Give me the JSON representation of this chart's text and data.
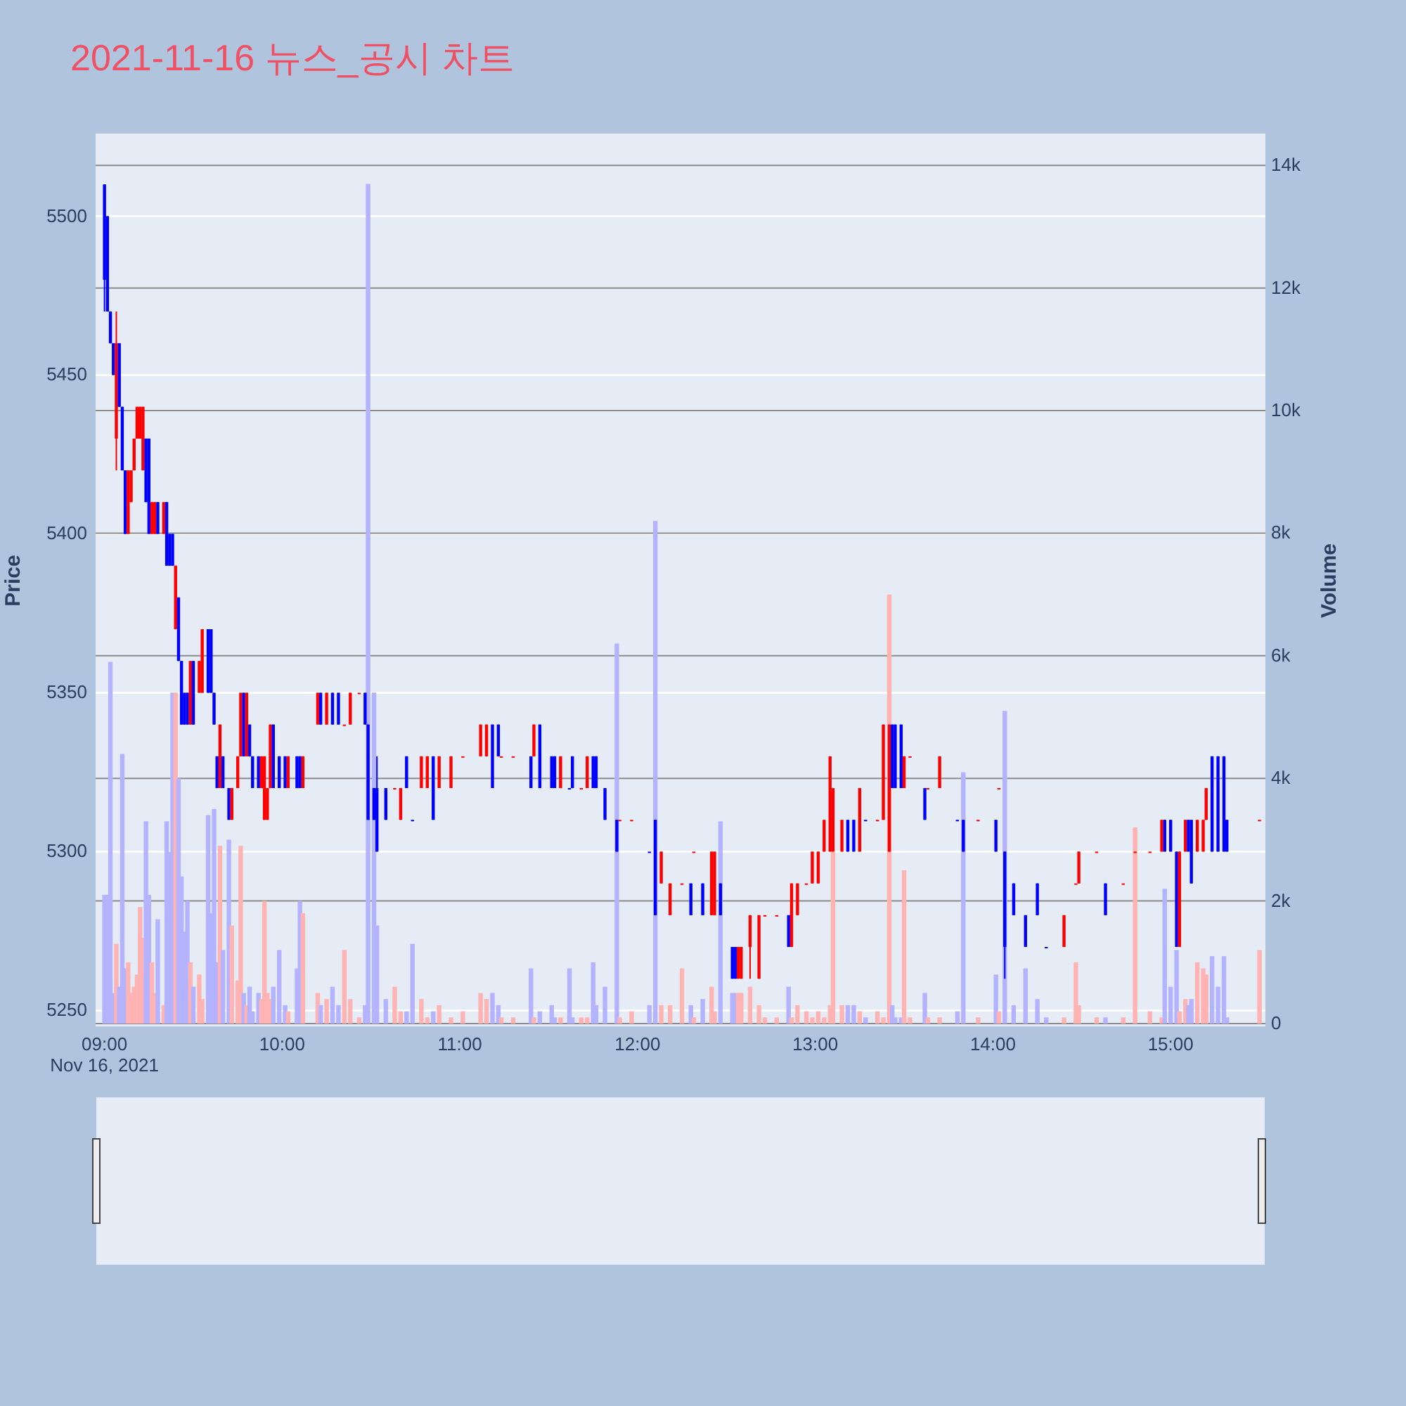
{
  "chart_data": {
    "type": "candlestick",
    "title": "2021-11-16 뉴스_공시 차트",
    "ylabel": "Price",
    "y2label": "Volume",
    "annotations": [
      "Nov 16, 2021"
    ],
    "colors": [
      "#0000ff",
      "#0000ff",
      "#0000ff",
      "#0000ff",
      "#ff0000",
      "#0000ff",
      "#0000ff",
      "#0000ff",
      "#ff0000",
      "#ff0000",
      "#ff0000",
      "#ff0000",
      "#ff0000",
      "#ff0000",
      "#0000ff",
      "#0000ff",
      "#ff0000",
      "#ff0000",
      "#0000ff",
      "#ff0000",
      "#0000ff",
      "#0000ff",
      "#0000ff",
      "#ff0000",
      "#0000ff",
      "#0000ff",
      "#0000ff",
      "#0000ff",
      "#ff0000",
      "#0000ff",
      "#ff0000",
      "#ff0000",
      "#0000ff",
      "#0000ff",
      "#0000ff",
      "#0000ff",
      "#ff0000",
      "#0000ff",
      "#0000ff",
      "#ff0000",
      "#ff0000",
      "#ff0000",
      "#0000ff",
      "#ff0000",
      "#0000ff",
      "#0000ff",
      "#0000ff",
      "#ff0000",
      "#ff0000",
      "#ff0000",
      "#ff0000",
      "#0000ff",
      "#0000ff",
      "#0000ff",
      "#ff0000",
      "#0000ff",
      "#0000ff",
      "#ff0000",
      "#ff0000",
      "#0000ff",
      "#ff0000",
      "#0000ff",
      "#0000ff",
      "#ff0000",
      "#ff0000",
      "#ff0000",
      "#0000ff",
      "#0000ff",
      "#0000ff",
      "#0000ff",
      "#0000ff",
      "#ff0000",
      "#ff0000",
      "#0000ff",
      "#0000ff",
      "#ff0000",
      "#ff0000",
      "#0000ff",
      "#ff0000",
      "#ff0000",
      "#ff0000",
      "#ff0000",
      "#ff0000",
      "#0000ff",
      "#0000ff",
      "#ff0000",
      "#ff0000",
      "#0000ff",
      "#ff0000",
      "#0000ff",
      "#0000ff",
      "#0000ff",
      "#ff0000",
      "#0000ff",
      "#0000ff",
      "#ff0000",
      "#ff0000",
      "#0000ff",
      "#0000ff",
      "#0000ff",
      "#0000ff",
      "#ff0000",
      "#ff0000",
      "#0000ff",
      "#0000ff",
      "#ff0000",
      "#ff0000",
      "#ff0000",
      "#0000ff",
      "#ff0000",
      "#0000ff",
      "#ff0000",
      "#ff0000",
      "#0000ff",
      "#0000ff",
      "#0000ff",
      "#ff0000",
      "#ff0000",
      "#ff0000",
      "#ff0000",
      "#ff0000",
      "#ff0000",
      "#0000ff",
      "#ff0000",
      "#ff0000",
      "#ff0000",
      "#ff0000",
      "#ff0000",
      "#ff0000",
      "#ff0000",
      "#ff0000",
      "#ff0000",
      "#0000ff",
      "#0000ff",
      "#ff0000",
      "#0000ff",
      "#ff0000",
      "#ff0000",
      "#ff0000",
      "#0000ff",
      "#0000ff",
      "#0000ff",
      "#ff0000",
      "#ff0000",
      "#0000ff",
      "#ff0000",
      "#ff0000",
      "#0000ff",
      "#0000ff",
      "#ff0000",
      "#0000ff",
      "#ff0000",
      "#0000ff",
      "#0000ff",
      "#0000ff",
      "#0000ff",
      "#0000ff",
      "#ff0000",
      "#ff0000",
      "#ff0000",
      "#ff0000",
      "#0000ff",
      "#ff0000",
      "#ff0000",
      "#ff0000",
      "#ff0000",
      "#0000ff",
      "#0000ff",
      "#0000ff",
      "#ff0000",
      "#ff0000",
      "#0000ff",
      "#0000ff",
      "#ff0000",
      "#ff0000",
      "#ff0000",
      "#0000ff",
      "#0000ff",
      "#0000ff",
      "#0000ff",
      "#ff0000"
    ],
    "grid": true,
    "legend": false,
    "x": [
      "2021-11-16T09:00",
      "2021-11-16T09:01",
      "2021-11-16T09:02",
      "2021-11-16T09:03",
      "2021-11-16T09:04",
      "2021-11-16T09:05",
      "2021-11-16T09:06",
      "2021-11-16T09:07",
      "2021-11-16T09:08",
      "2021-11-16T09:09",
      "2021-11-16T09:10",
      "2021-11-16T09:11",
      "2021-11-16T09:12",
      "2021-11-16T09:13",
      "2021-11-16T09:14",
      "2021-11-16T09:15",
      "2021-11-16T09:16",
      "2021-11-16T09:17",
      "2021-11-16T09:18",
      "2021-11-16T09:20",
      "2021-11-16T09:21",
      "2021-11-16T09:22",
      "2021-11-16T09:23",
      "2021-11-16T09:24",
      "2021-11-16T09:25",
      "2021-11-16T09:26",
      "2021-11-16T09:27",
      "2021-11-16T09:28",
      "2021-11-16T09:29",
      "2021-11-16T09:30",
      "2021-11-16T09:32",
      "2021-11-16T09:33",
      "2021-11-16T09:35",
      "2021-11-16T09:36",
      "2021-11-16T09:37",
      "2021-11-16T09:38",
      "2021-11-16T09:39",
      "2021-11-16T09:40",
      "2021-11-16T09:42",
      "2021-11-16T09:43",
      "2021-11-16T09:45",
      "2021-11-16T09:46",
      "2021-11-16T09:47",
      "2021-11-16T09:48",
      "2021-11-16T09:49",
      "2021-11-16T09:50",
      "2021-11-16T09:52",
      "2021-11-16T09:53",
      "2021-11-16T09:54",
      "2021-11-16T09:55",
      "2021-11-16T09:56",
      "2021-11-16T09:57",
      "2021-11-16T09:59",
      "2021-11-16T10:01",
      "2021-11-16T10:02",
      "2021-11-16T10:05",
      "2021-11-16T10:06",
      "2021-11-16T10:07",
      "2021-11-16T10:12",
      "2021-11-16T10:13",
      "2021-11-16T10:15",
      "2021-11-16T10:17",
      "2021-11-16T10:19",
      "2021-11-16T10:21",
      "2021-11-16T10:23",
      "2021-11-16T10:26",
      "2021-11-16T10:28",
      "2021-11-16T10:29",
      "2021-11-16T10:31",
      "2021-11-16T10:32",
      "2021-11-16T10:35",
      "2021-11-16T10:38",
      "2021-11-16T10:40",
      "2021-11-16T10:42",
      "2021-11-16T10:44",
      "2021-11-16T10:47",
      "2021-11-16T10:49",
      "2021-11-16T10:51",
      "2021-11-16T10:53",
      "2021-11-16T10:57",
      "2021-11-16T11:01",
      "2021-11-16T11:07",
      "2021-11-16T11:09",
      "2021-11-16T11:11",
      "2021-11-16T11:13",
      "2021-11-16T11:14",
      "2021-11-16T11:18",
      "2021-11-16T11:24",
      "2021-11-16T11:25",
      "2021-11-16T11:27",
      "2021-11-16T11:31",
      "2021-11-16T11:32",
      "2021-11-16T11:34",
      "2021-11-16T11:37",
      "2021-11-16T11:38",
      "2021-11-16T11:41",
      "2021-11-16T11:43",
      "2021-11-16T11:45",
      "2021-11-16T11:46",
      "2021-11-16T11:49",
      "2021-11-16T11:53",
      "2021-11-16T11:54",
      "2021-11-16T11:58",
      "2021-11-16T12:04",
      "2021-11-16T12:06",
      "2021-11-16T12:08",
      "2021-11-16T12:11",
      "2021-11-16T12:15",
      "2021-11-16T12:18",
      "2021-11-16T12:19",
      "2021-11-16T12:22",
      "2021-11-16T12:25",
      "2021-11-16T12:26",
      "2021-11-16T12:28",
      "2021-11-16T12:32",
      "2021-11-16T12:33",
      "2021-11-16T12:34",
      "2021-11-16T12:35",
      "2021-11-16T12:38",
      "2021-11-16T12:41",
      "2021-11-16T12:43",
      "2021-11-16T12:47",
      "2021-11-16T12:51",
      "2021-11-16T12:52",
      "2021-11-16T12:54",
      "2021-11-16T12:57",
      "2021-11-16T12:59",
      "2021-11-16T13:01",
      "2021-11-16T13:03",
      "2021-11-16T13:05",
      "2021-11-16T13:06",
      "2021-11-16T13:09",
      "2021-11-16T13:11",
      "2021-11-16T13:13",
      "2021-11-16T13:15",
      "2021-11-16T13:17",
      "2021-11-16T13:21",
      "2021-11-16T13:23",
      "2021-11-16T13:25",
      "2021-11-16T13:26",
      "2021-11-16T13:27",
      "2021-11-16T13:29",
      "2021-11-16T13:30",
      "2021-11-16T13:32",
      "2021-11-16T13:37",
      "2021-11-16T13:38",
      "2021-11-16T13:42",
      "2021-11-16T13:48",
      "2021-11-16T13:50",
      "2021-11-16T13:55",
      "2021-11-16T14:01",
      "2021-11-16T14:02",
      "2021-11-16T14:04",
      "2021-11-16T14:07",
      "2021-11-16T14:11",
      "2021-11-16T14:15",
      "2021-11-16T14:18",
      "2021-11-16T14:24",
      "2021-11-16T14:28",
      "2021-11-16T14:29",
      "2021-11-16T14:35",
      "2021-11-16T14:38",
      "2021-11-16T14:44",
      "2021-11-16T14:48",
      "2021-11-16T14:53",
      "2021-11-16T14:57",
      "2021-11-16T14:58",
      "2021-11-16T15:00",
      "2021-11-16T15:02",
      "2021-11-16T15:03",
      "2021-11-16T15:05",
      "2021-11-16T15:06",
      "2021-11-16T15:07",
      "2021-11-16T15:09",
      "2021-11-16T15:11",
      "2021-11-16T15:12",
      "2021-11-16T15:14",
      "2021-11-16T15:16",
      "2021-11-16T15:18",
      "2021-11-16T15:19",
      "2021-11-16T15:30"
    ],
    "ohlc": [
      [
        5510,
        5510,
        5470,
        5480
      ],
      [
        5500,
        5500,
        5470,
        5470
      ],
      [
        5470,
        5470,
        5460,
        5460
      ],
      [
        5460,
        5460,
        5450,
        5450
      ],
      [
        5430,
        5470,
        5420,
        5460
      ],
      [
        5460,
        5460,
        5440,
        5440
      ],
      [
        5440,
        5440,
        5420,
        5420
      ],
      [
        5420,
        5420,
        5400,
        5400
      ],
      [
        5400,
        5420,
        5400,
        5420
      ],
      [
        5410,
        5420,
        5410,
        5420
      ],
      [
        5420,
        5430,
        5420,
        5430
      ],
      [
        5430,
        5440,
        5430,
        5440
      ],
      [
        5430,
        5440,
        5430,
        5440
      ],
      [
        5420,
        5440,
        5420,
        5440
      ],
      [
        5430,
        5430,
        5410,
        5410
      ],
      [
        5430,
        5430,
        5400,
        5400
      ],
      [
        5400,
        5410,
        5400,
        5410
      ],
      [
        5400,
        5410,
        5400,
        5410
      ],
      [
        5410,
        5410,
        5400,
        5400
      ],
      [
        5400,
        5410,
        5400,
        5410
      ],
      [
        5410,
        5410,
        5390,
        5390
      ],
      [
        5400,
        5400,
        5390,
        5390
      ],
      [
        5400,
        5400,
        5390,
        5390
      ],
      [
        5370,
        5390,
        5370,
        5390
      ],
      [
        5380,
        5380,
        5360,
        5360
      ],
      [
        5360,
        5360,
        5340,
        5340
      ],
      [
        5350,
        5350,
        5340,
        5340
      ],
      [
        5350,
        5350,
        5340,
        5340
      ],
      [
        5340,
        5360,
        5340,
        5360
      ],
      [
        5360,
        5360,
        5340,
        5340
      ],
      [
        5350,
        5360,
        5350,
        5360
      ],
      [
        5350,
        5370,
        5350,
        5370
      ],
      [
        5370,
        5370,
        5350,
        5350
      ],
      [
        5370,
        5370,
        5350,
        5350
      ],
      [
        5350,
        5350,
        5340,
        5340
      ],
      [
        5330,
        5330,
        5320,
        5320
      ],
      [
        5320,
        5340,
        5320,
        5340
      ],
      [
        5330,
        5330,
        5320,
        5320
      ],
      [
        5320,
        5320,
        5310,
        5310
      ],
      [
        5310,
        5320,
        5310,
        5320
      ],
      [
        5320,
        5330,
        5320,
        5330
      ],
      [
        5330,
        5350,
        5330,
        5350
      ],
      [
        5350,
        5350,
        5330,
        5330
      ],
      [
        5330,
        5350,
        5330,
        5350
      ],
      [
        5340,
        5340,
        5330,
        5330
      ],
      [
        5330,
        5330,
        5320,
        5320
      ],
      [
        5330,
        5330,
        5320,
        5320
      ],
      [
        5320,
        5330,
        5320,
        5330
      ],
      [
        5310,
        5330,
        5310,
        5330
      ],
      [
        5310,
        5320,
        5310,
        5320
      ],
      [
        5320,
        5340,
        5320,
        5340
      ],
      [
        5340,
        5340,
        5320,
        5320
      ],
      [
        5330,
        5330,
        5320,
        5320
      ],
      [
        5330,
        5330,
        5320,
        5320
      ],
      [
        5320,
        5330,
        5320,
        5330
      ],
      [
        5330,
        5330,
        5320,
        5320
      ],
      [
        5330,
        5330,
        5320,
        5320
      ],
      [
        5320,
        5330,
        5320,
        5330
      ],
      [
        5340,
        5350,
        5340,
        5350
      ],
      [
        5350,
        5350,
        5340,
        5340
      ],
      [
        5340,
        5350,
        5340,
        5350
      ],
      [
        5350,
        5350,
        5340,
        5340
      ],
      [
        5350,
        5350,
        5340,
        5340
      ],
      [
        5340,
        5340,
        5340,
        5340
      ],
      [
        5340,
        5350,
        5340,
        5350
      ],
      [
        5350,
        5350,
        5350,
        5350
      ],
      [
        5350,
        5350,
        5340,
        5340
      ],
      [
        5340,
        5340,
        5310,
        5310
      ],
      [
        5320,
        5320,
        5310,
        5310
      ],
      [
        5320,
        5330,
        5300,
        5300
      ],
      [
        5320,
        5320,
        5310,
        5310
      ],
      [
        5320,
        5320,
        5320,
        5320
      ],
      [
        5310,
        5320,
        5310,
        5320
      ],
      [
        5330,
        5330,
        5320,
        5320
      ],
      [
        5310,
        5310,
        5310,
        5310
      ],
      [
        5320,
        5330,
        5320,
        5330
      ],
      [
        5320,
        5330,
        5320,
        5330
      ],
      [
        5330,
        5330,
        5310,
        5310
      ],
      [
        5320,
        5330,
        5320,
        5330
      ],
      [
        5320,
        5330,
        5320,
        5330
      ],
      [
        5330,
        5330,
        5330,
        5330
      ],
      [
        5330,
        5340,
        5330,
        5340
      ],
      [
        5330,
        5340,
        5330,
        5340
      ],
      [
        5340,
        5340,
        5320,
        5320
      ],
      [
        5340,
        5340,
        5330,
        5330
      ],
      [
        5330,
        5330,
        5330,
        5330
      ],
      [
        5330,
        5330,
        5330,
        5330
      ],
      [
        5330,
        5330,
        5320,
        5320
      ],
      [
        5330,
        5340,
        5330,
        5340
      ],
      [
        5340,
        5340,
        5320,
        5320
      ],
      [
        5330,
        5330,
        5320,
        5320
      ],
      [
        5330,
        5330,
        5320,
        5320
      ],
      [
        5320,
        5330,
        5320,
        5330
      ],
      [
        5320,
        5320,
        5320,
        5320
      ],
      [
        5330,
        5330,
        5320,
        5320
      ],
      [
        5320,
        5320,
        5320,
        5320
      ],
      [
        5320,
        5330,
        5320,
        5330
      ],
      [
        5330,
        5330,
        5320,
        5320
      ],
      [
        5330,
        5330,
        5320,
        5320
      ],
      [
        5320,
        5320,
        5310,
        5310
      ],
      [
        5310,
        5310,
        5300,
        5300
      ],
      [
        5310,
        5310,
        5310,
        5310
      ],
      [
        5310,
        5310,
        5310,
        5310
      ],
      [
        5300,
        5300,
        5300,
        5300
      ],
      [
        5310,
        5310,
        5280,
        5280
      ],
      [
        5290,
        5300,
        5290,
        5300
      ],
      [
        5280,
        5290,
        5280,
        5290
      ],
      [
        5290,
        5290,
        5290,
        5290
      ],
      [
        5290,
        5290,
        5280,
        5280
      ],
      [
        5300,
        5300,
        5300,
        5300
      ],
      [
        5290,
        5290,
        5280,
        5280
      ],
      [
        5280,
        5300,
        5280,
        5300
      ],
      [
        5280,
        5300,
        5280,
        5300
      ],
      [
        5290,
        5290,
        5280,
        5280
      ],
      [
        5270,
        5270,
        5260,
        5260
      ],
      [
        5270,
        5270,
        5260,
        5260
      ],
      [
        5260,
        5270,
        5260,
        5270
      ],
      [
        5260,
        5270,
        5260,
        5270
      ],
      [
        5270,
        5280,
        5260,
        5280
      ],
      [
        5260,
        5280,
        5260,
        5280
      ],
      [
        5280,
        5280,
        5280,
        5280
      ],
      [
        5280,
        5280,
        5280,
        5280
      ],
      [
        5280,
        5280,
        5270,
        5270
      ],
      [
        5270,
        5290,
        5270,
        5290
      ],
      [
        5280,
        5290,
        5280,
        5290
      ],
      [
        5290,
        5290,
        5290,
        5290
      ],
      [
        5290,
        5300,
        5290,
        5300
      ],
      [
        5290,
        5300,
        5290,
        5300
      ],
      [
        5300,
        5310,
        5300,
        5310
      ],
      [
        5300,
        5330,
        5300,
        5330
      ],
      [
        5300,
        5320,
        5300,
        5320
      ],
      [
        5300,
        5310,
        5300,
        5310
      ],
      [
        5310,
        5310,
        5300,
        5300
      ],
      [
        5310,
        5310,
        5300,
        5300
      ],
      [
        5300,
        5320,
        5300,
        5320
      ],
      [
        5310,
        5310,
        5310,
        5310
      ],
      [
        5310,
        5310,
        5310,
        5310
      ],
      [
        5310,
        5340,
        5310,
        5340
      ],
      [
        5300,
        5340,
        5300,
        5340
      ],
      [
        5340,
        5340,
        5320,
        5320
      ],
      [
        5340,
        5340,
        5320,
        5320
      ],
      [
        5340,
        5340,
        5320,
        5320
      ],
      [
        5320,
        5330,
        5320,
        5330
      ],
      [
        5330,
        5330,
        5330,
        5330
      ],
      [
        5320,
        5320,
        5310,
        5310
      ],
      [
        5320,
        5320,
        5320,
        5320
      ],
      [
        5320,
        5330,
        5320,
        5330
      ],
      [
        5310,
        5310,
        5310,
        5310
      ],
      [
        5310,
        5310,
        5300,
        5300
      ],
      [
        5310,
        5310,
        5310,
        5310
      ],
      [
        5310,
        5310,
        5300,
        5300
      ],
      [
        5320,
        5320,
        5320,
        5320
      ],
      [
        5300,
        5300,
        5260,
        5270
      ],
      [
        5290,
        5290,
        5280,
        5280
      ],
      [
        5280,
        5280,
        5270,
        5270
      ],
      [
        5290,
        5290,
        5280,
        5280
      ],
      [
        5270,
        5270,
        5270,
        5270
      ],
      [
        5270,
        5280,
        5270,
        5280
      ],
      [
        5290,
        5290,
        5290,
        5290
      ],
      [
        5290,
        5300,
        5290,
        5300
      ],
      [
        5300,
        5300,
        5300,
        5300
      ],
      [
        5290,
        5290,
        5280,
        5280
      ],
      [
        5290,
        5290,
        5290,
        5290
      ],
      [
        5300,
        5300,
        5300,
        5300
      ],
      [
        5300,
        5300,
        5300,
        5300
      ],
      [
        5300,
        5310,
        5300,
        5310
      ],
      [
        5310,
        5310,
        5300,
        5300
      ],
      [
        5310,
        5310,
        5300,
        5300
      ],
      [
        5300,
        5300,
        5270,
        5270
      ],
      [
        5270,
        5300,
        5270,
        5300
      ],
      [
        5300,
        5310,
        5300,
        5310
      ],
      [
        5310,
        5310,
        5300,
        5300
      ],
      [
        5310,
        5310,
        5290,
        5290
      ],
      [
        5300,
        5310,
        5300,
        5310
      ],
      [
        5300,
        5310,
        5300,
        5310
      ],
      [
        5310,
        5320,
        5310,
        5320
      ],
      [
        5330,
        5330,
        5300,
        5300
      ],
      [
        5330,
        5330,
        5300,
        5300
      ],
      [
        5330,
        5330,
        5300,
        5300
      ],
      [
        5310,
        5310,
        5300,
        5300
      ],
      [
        5310,
        5310,
        5310,
        5310
      ]
    ],
    "series": [
      {
        "type": "bar",
        "axis": "y2",
        "colors": [
          "#b3b3ff",
          "#b3b3ff",
          "#b3b3ff",
          "#b3b3ff",
          "#ffb3b3",
          "#b3b3ff",
          "#b3b3ff",
          "#b3b3ff",
          "#ffb3b3",
          "#ffb3b3",
          "#ffb3b3",
          "#ffb3b3",
          "#ffb3b3",
          "#ffb3b3",
          "#b3b3ff",
          "#b3b3ff",
          "#ffb3b3",
          "#ffb3b3",
          "#b3b3ff",
          "#ffb3b3",
          "#b3b3ff",
          "#b3b3ff",
          "#b3b3ff",
          "#ffb3b3",
          "#b3b3ff",
          "#b3b3ff",
          "#b3b3ff",
          "#b3b3ff",
          "#ffb3b3",
          "#b3b3ff",
          "#ffb3b3",
          "#ffb3b3",
          "#b3b3ff",
          "#b3b3ff",
          "#b3b3ff",
          "#b3b3ff",
          "#ffb3b3",
          "#b3b3ff",
          "#b3b3ff",
          "#ffb3b3",
          "#ffb3b3",
          "#ffb3b3",
          "#b3b3ff",
          "#ffb3b3",
          "#b3b3ff",
          "#b3b3ff",
          "#b3b3ff",
          "#ffb3b3",
          "#ffb3b3",
          "#ffb3b3",
          "#ffb3b3",
          "#b3b3ff",
          "#b3b3ff",
          "#b3b3ff",
          "#ffb3b3",
          "#b3b3ff",
          "#b3b3ff",
          "#ffb3b3",
          "#ffb3b3",
          "#b3b3ff",
          "#ffb3b3",
          "#b3b3ff",
          "#b3b3ff",
          "#ffb3b3",
          "#ffb3b3",
          "#ffb3b3",
          "#b3b3ff",
          "#b3b3ff",
          "#b3b3ff",
          "#b3b3ff",
          "#b3b3ff",
          "#ffb3b3",
          "#ffb3b3",
          "#b3b3ff",
          "#b3b3ff",
          "#ffb3b3",
          "#ffb3b3",
          "#b3b3ff",
          "#ffb3b3",
          "#ffb3b3",
          "#ffb3b3",
          "#ffb3b3",
          "#ffb3b3",
          "#b3b3ff",
          "#b3b3ff",
          "#ffb3b3",
          "#ffb3b3",
          "#b3b3ff",
          "#ffb3b3",
          "#b3b3ff",
          "#b3b3ff",
          "#b3b3ff",
          "#ffb3b3",
          "#b3b3ff",
          "#b3b3ff",
          "#ffb3b3",
          "#ffb3b3",
          "#b3b3ff",
          "#b3b3ff",
          "#b3b3ff",
          "#b3b3ff",
          "#ffb3b3",
          "#ffb3b3",
          "#b3b3ff",
          "#b3b3ff",
          "#ffb3b3",
          "#ffb3b3",
          "#ffb3b3",
          "#b3b3ff",
          "#ffb3b3",
          "#b3b3ff",
          "#ffb3b3",
          "#ffb3b3",
          "#b3b3ff",
          "#b3b3ff",
          "#b3b3ff",
          "#ffb3b3",
          "#ffb3b3",
          "#ffb3b3",
          "#ffb3b3",
          "#ffb3b3",
          "#ffb3b3",
          "#b3b3ff",
          "#ffb3b3",
          "#ffb3b3",
          "#ffb3b3",
          "#ffb3b3",
          "#ffb3b3",
          "#ffb3b3",
          "#ffb3b3",
          "#ffb3b3",
          "#ffb3b3",
          "#b3b3ff",
          "#b3b3ff",
          "#ffb3b3",
          "#b3b3ff",
          "#ffb3b3",
          "#ffb3b3",
          "#ffb3b3",
          "#b3b3ff",
          "#b3b3ff",
          "#b3b3ff",
          "#ffb3b3",
          "#ffb3b3",
          "#b3b3ff",
          "#ffb3b3",
          "#ffb3b3",
          "#b3b3ff",
          "#b3b3ff",
          "#ffb3b3",
          "#b3b3ff",
          "#ffb3b3",
          "#b3b3ff",
          "#b3b3ff",
          "#b3b3ff",
          "#b3b3ff",
          "#b3b3ff",
          "#ffb3b3",
          "#ffb3b3",
          "#ffb3b3",
          "#ffb3b3",
          "#b3b3ff",
          "#ffb3b3",
          "#ffb3b3",
          "#ffb3b3",
          "#ffb3b3",
          "#b3b3ff",
          "#b3b3ff",
          "#b3b3ff",
          "#ffb3b3",
          "#ffb3b3",
          "#b3b3ff",
          "#b3b3ff",
          "#ffb3b3",
          "#ffb3b3",
          "#ffb3b3",
          "#b3b3ff",
          "#b3b3ff",
          "#b3b3ff",
          "#b3b3ff",
          "#ffb3b3"
        ],
        "values": [
          2100,
          2100,
          5900,
          500,
          1300,
          600,
          4400,
          900,
          1000,
          500,
          600,
          800,
          1900,
          1400,
          3300,
          2100,
          1000,
          500,
          1700,
          300,
          3300,
          2800,
          5400,
          5400,
          4000,
          2400,
          1500,
          2000,
          1000,
          600,
          800,
          400,
          3400,
          1800,
          3500,
          1000,
          2900,
          1200,
          3000,
          1600,
          700,
          2900,
          500,
          300,
          600,
          200,
          500,
          400,
          2000,
          500,
          400,
          600,
          1200,
          300,
          200,
          900,
          2000,
          1800,
          500,
          300,
          400,
          600,
          300,
          1200,
          400,
          100,
          300,
          13700,
          5400,
          1600,
          400,
          600,
          200,
          200,
          1300,
          400,
          100,
          200,
          300,
          100,
          200,
          500,
          400,
          500,
          300,
          100,
          100,
          900,
          100,
          200,
          300,
          100,
          100,
          900,
          100,
          100,
          100,
          1000,
          300,
          600,
          6200,
          100,
          200,
          300,
          8200,
          300,
          300,
          900,
          300,
          100,
          400,
          600,
          200,
          3300,
          500,
          500,
          500,
          500,
          600,
          300,
          100,
          100,
          600,
          100,
          300,
          200,
          100,
          200,
          100,
          300,
          2800,
          300,
          300,
          300,
          200,
          100,
          200,
          100,
          7000,
          300,
          100,
          100,
          2500,
          100,
          500,
          100,
          100,
          200,
          4100,
          100,
          800,
          200,
          5100,
          300,
          900,
          400,
          100,
          100,
          1000,
          300,
          100,
          100,
          100,
          3200,
          200,
          100,
          2200,
          600,
          1200,
          200,
          400,
          300,
          400,
          1000,
          900,
          800,
          1100,
          600,
          1100,
          100,
          1200
        ]
      }
    ],
    "xlim": [
      "2021-11-16T08:57",
      "2021-11-16T15:32"
    ],
    "xticks": [
      {
        "value": "2021-11-16T09:00",
        "label": "09:00"
      },
      {
        "value": "2021-11-16T10:00",
        "label": "10:00"
      },
      {
        "value": "2021-11-16T11:00",
        "label": "11:00"
      },
      {
        "value": "2021-11-16T12:00",
        "label": "12:00"
      },
      {
        "value": "2021-11-16T13:00",
        "label": "13:00"
      },
      {
        "value": "2021-11-16T14:00",
        "label": "14:00"
      },
      {
        "value": "2021-11-16T15:00",
        "label": "15:00"
      }
    ],
    "ylim": [
      5245,
      5526
    ],
    "yticks": [
      5250,
      5300,
      5350,
      5400,
      5450,
      5500
    ],
    "y2lim": [
      -46,
      14520
    ],
    "y2ticks": [
      {
        "value": 0,
        "label": "0"
      },
      {
        "value": 2000,
        "label": "2k"
      },
      {
        "value": 4000,
        "label": "4k"
      },
      {
        "value": 6000,
        "label": "6k"
      },
      {
        "value": 8000,
        "label": "8k"
      },
      {
        "value": 10000,
        "label": "10k"
      },
      {
        "value": 12000,
        "label": "12k"
      },
      {
        "value": 14000,
        "label": "14k"
      }
    ]
  }
}
